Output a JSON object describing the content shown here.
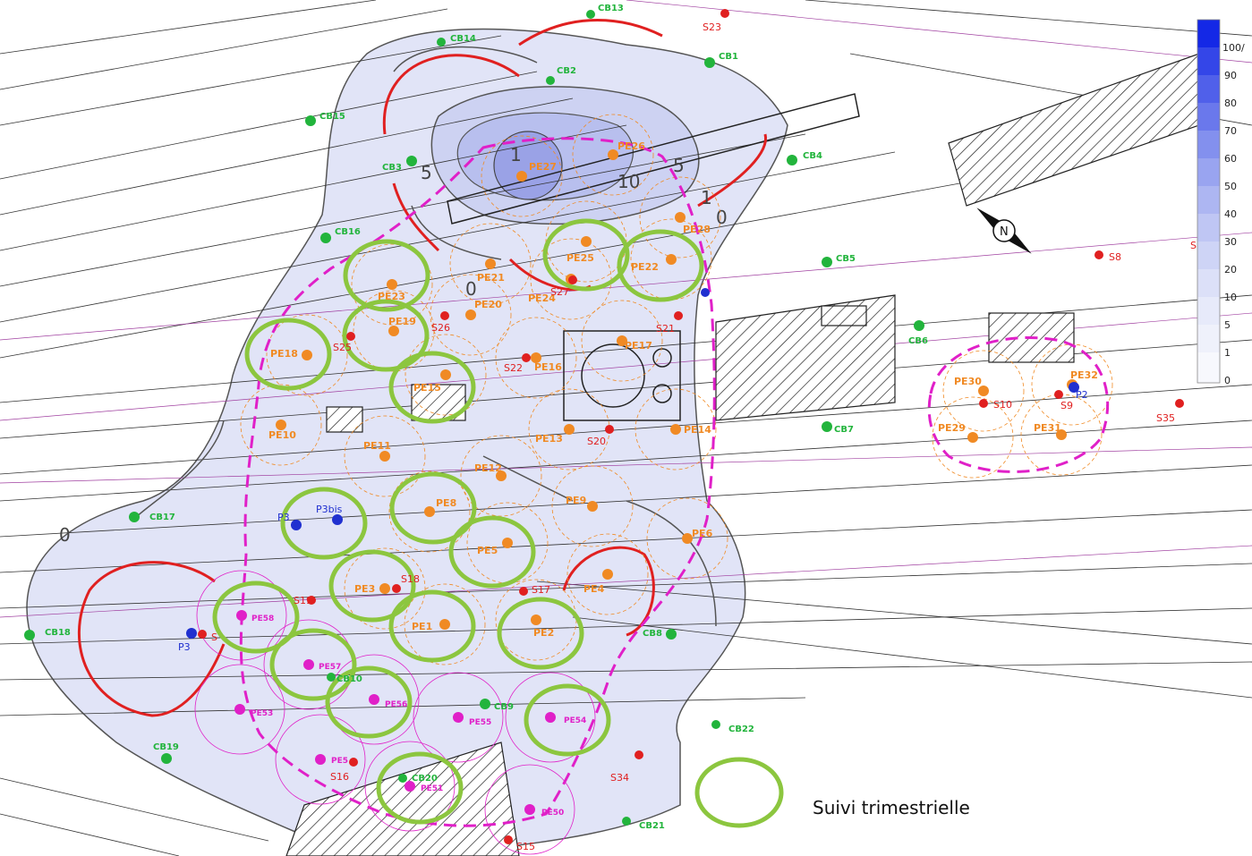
{
  "legend": {
    "label": "Suivi trimestrielle",
    "ring_color": "#8cc63f"
  },
  "colors": {
    "pe_orange": "#f08a24",
    "pe_magenta": "#e020c8",
    "cb_green": "#22b43c",
    "s_red": "#e02020",
    "p_blue": "#2030d0",
    "plume_fill": "#c8cdf0",
    "contour_red": "#e02020",
    "dashed_boundary": "#e020c8"
  },
  "scale": {
    "values": [
      "100/",
      "90",
      "80",
      "70",
      "60",
      "50",
      "40",
      "30",
      "20",
      "10",
      "5",
      "1",
      "0"
    ]
  },
  "contour_labels": [
    "5",
    "10",
    "5",
    "1",
    "1",
    "0",
    "0",
    "0"
  ],
  "pe_orange": [
    {
      "label": "PE27"
    },
    {
      "label": "PE26"
    },
    {
      "label": "PE25"
    },
    {
      "label": "PE28"
    },
    {
      "label": "PE22"
    },
    {
      "label": "PE23"
    },
    {
      "label": "PE21"
    },
    {
      "label": "PE20"
    },
    {
      "label": "PE24"
    },
    {
      "label": "PE19"
    },
    {
      "label": "PE18"
    },
    {
      "label": "PE17"
    },
    {
      "label": "PE16"
    },
    {
      "label": "PE15"
    },
    {
      "label": "PE10"
    },
    {
      "label": "PE11"
    },
    {
      "label": "PE13"
    },
    {
      "label": "PE14"
    },
    {
      "label": "PE12"
    },
    {
      "label": "PE8"
    },
    {
      "label": "PE9"
    },
    {
      "label": "PE5"
    },
    {
      "label": "PE6"
    },
    {
      "label": "PE3"
    },
    {
      "label": "PE4"
    },
    {
      "label": "PE1"
    },
    {
      "label": "PE2"
    },
    {
      "label": "PE30"
    },
    {
      "label": "PE29"
    },
    {
      "label": "PE31"
    },
    {
      "label": "PE32"
    }
  ],
  "pe_magenta": [
    {
      "label": "PE58"
    },
    {
      "label": "PE57"
    },
    {
      "label": "PE53"
    },
    {
      "label": "PE56"
    },
    {
      "label": "PE55"
    },
    {
      "label": "PE54"
    },
    {
      "label": "PE5"
    },
    {
      "label": "PE51"
    },
    {
      "label": "PE50"
    }
  ],
  "cb": [
    {
      "label": "CB13"
    },
    {
      "label": "CB14"
    },
    {
      "label": "CB2"
    },
    {
      "label": "CB1"
    },
    {
      "label": "CB15"
    },
    {
      "label": "CB3"
    },
    {
      "label": "CB4"
    },
    {
      "label": "CB16"
    },
    {
      "label": "CB5"
    },
    {
      "label": "CB6"
    },
    {
      "label": "CB7"
    },
    {
      "label": "CB17"
    },
    {
      "label": "CB18"
    },
    {
      "label": "CB8"
    },
    {
      "label": "CB10"
    },
    {
      "label": "CB9"
    },
    {
      "label": "CB22"
    },
    {
      "label": "CB19"
    },
    {
      "label": "CB20"
    },
    {
      "label": "CB21"
    }
  ],
  "s": [
    {
      "label": "S23"
    },
    {
      "label": "S8"
    },
    {
      "label": "S"
    },
    {
      "label": "S27"
    },
    {
      "label": "S26"
    },
    {
      "label": "S25"
    },
    {
      "label": "S21"
    },
    {
      "label": "S22"
    },
    {
      "label": "S20"
    },
    {
      "label": "S10"
    },
    {
      "label": "S9"
    },
    {
      "label": "S35"
    },
    {
      "label": "S18"
    },
    {
      "label": "S17"
    },
    {
      "label": "S19"
    },
    {
      "label": "S"
    },
    {
      "label": "S34"
    },
    {
      "label": "S16"
    },
    {
      "label": "S15"
    }
  ],
  "p": [
    {
      "label": "P3"
    },
    {
      "label": "P3bis"
    },
    {
      "label": "P3"
    },
    {
      "label": "P2"
    }
  ]
}
